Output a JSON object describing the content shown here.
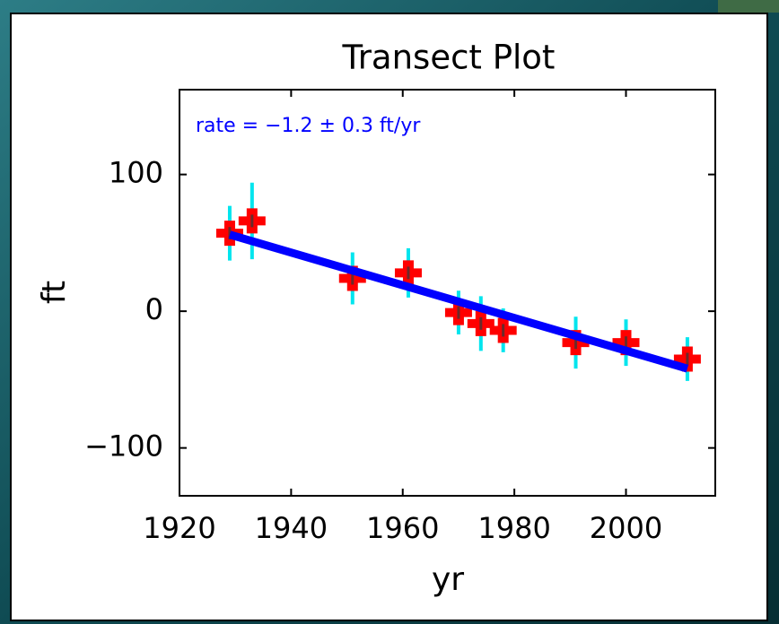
{
  "chart_data": {
    "type": "errorbar",
    "title": "Transect Plot",
    "xlabel": "yr",
    "ylabel": "ft",
    "annotation": "rate = −1.2 ± 0.3 ft/yr",
    "points": {
      "color": "#ff0000",
      "error_color": "#00e5ee",
      "x": [
        1929,
        1933,
        1951,
        1961,
        1970,
        1974,
        1978,
        1991,
        2000,
        2011
      ],
      "values": [
        57,
        66,
        24,
        28,
        -1,
        -9,
        -14,
        -23,
        -23,
        -35
      ],
      "errors": [
        20,
        28,
        19,
        18,
        16,
        20,
        16,
        19,
        17,
        16
      ]
    },
    "fit": {
      "color": "#0000ff",
      "x": [
        1929,
        2011
      ],
      "values": [
        56,
        -42
      ]
    },
    "xlim": [
      1920,
      2016
    ],
    "ylim": [
      -135,
      162
    ],
    "xticks": [
      1920,
      1940,
      1960,
      1980,
      2000
    ],
    "yticks": [
      {
        "value": -100,
        "label": "−100"
      },
      0,
      100
    ]
  }
}
